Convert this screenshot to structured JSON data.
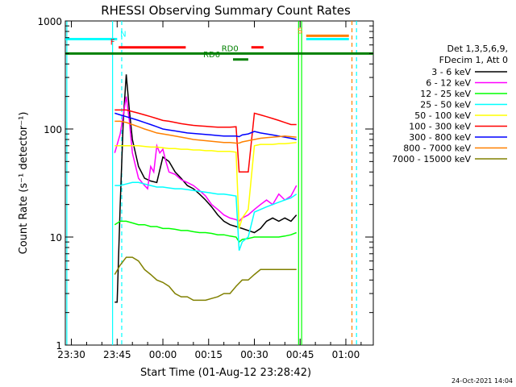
{
  "chart_data": {
    "type": "line",
    "title": "RHESSI Observing Summary Count Rates",
    "xlabel": "Start Time (01-Aug-12 23:28:42)",
    "ylabel": "Count Rate (s⁻¹ detector⁻¹)",
    "yscale": "log",
    "ylim": [
      1,
      1000
    ],
    "xlim_minutes_after_2330": [
      -2,
      99
    ],
    "grid": false,
    "legend_position": "right",
    "x_ticks": [
      {
        "label": "23:30",
        "t": 0
      },
      {
        "label": "23:45",
        "t": 15
      },
      {
        "label": "00:00",
        "t": 30
      },
      {
        "label": "00:15",
        "t": 45
      },
      {
        "label": "00:30",
        "t": 60
      },
      {
        "label": "00:45",
        "t": 75
      },
      {
        "label": "01:00",
        "t": 90
      }
    ],
    "y_ticks": [
      {
        "label": "1",
        "v": 1
      },
      {
        "label": "10",
        "v": 10
      },
      {
        "label": "100",
        "v": 100
      },
      {
        "label": "1000",
        "v": 1000
      }
    ],
    "legend_header": [
      "Det 1,3,5,6,9,",
      "FDecim 1, Att 0"
    ],
    "timestamp": "24-Oct-2021 14:04",
    "series": [
      {
        "name": "3 - 6 keV",
        "color": "#000000",
        "x": [
          14.2,
          15,
          16,
          17,
          18,
          19,
          20,
          22,
          24,
          26,
          28,
          30,
          32,
          34,
          36,
          38,
          40,
          42,
          44,
          46,
          48,
          50,
          52,
          54,
          56,
          58,
          60,
          62,
          64,
          66,
          68,
          70,
          72,
          73.8
        ],
        "y": [
          2.5,
          2.5,
          20,
          120,
          320,
          150,
          80,
          45,
          35,
          33,
          32,
          55,
          50,
          40,
          35,
          30,
          28,
          25,
          22,
          19,
          16,
          14,
          13,
          12.5,
          12,
          11.5,
          11,
          12,
          14,
          15,
          14,
          15,
          14,
          16
        ]
      },
      {
        "name": "6 - 12 keV",
        "color": "#ff00ff",
        "x": [
          14.2,
          16,
          18,
          19,
          20,
          22,
          24,
          25,
          26,
          27,
          28,
          29,
          30,
          31,
          32,
          34,
          36,
          38,
          40,
          42,
          44,
          46,
          48,
          50,
          52,
          54,
          55,
          56,
          58,
          60,
          62,
          64,
          66,
          68,
          70,
          72,
          73.8
        ],
        "y": [
          60,
          90,
          200,
          120,
          60,
          35,
          30,
          28,
          45,
          40,
          70,
          60,
          65,
          50,
          40,
          38,
          34,
          32,
          30,
          27,
          24,
          20,
          18,
          16,
          15,
          14.5,
          14,
          15,
          16,
          18,
          20,
          22,
          20,
          25,
          22,
          24,
          30
        ]
      },
      {
        "name": "12 - 25 keV",
        "color": "#00ff00",
        "x": [
          14.2,
          16,
          18,
          20,
          22,
          24,
          26,
          28,
          30,
          32,
          34,
          36,
          38,
          40,
          42,
          44,
          46,
          48,
          50,
          52,
          54,
          55,
          56,
          58,
          60,
          62,
          64,
          66,
          68,
          70,
          72,
          73.8
        ],
        "y": [
          13,
          14,
          14,
          13.5,
          13,
          13,
          12.5,
          12.5,
          12,
          12,
          11.8,
          11.5,
          11.5,
          11.2,
          11,
          11,
          10.8,
          10.5,
          10.5,
          10.2,
          10,
          9,
          9.5,
          9.7,
          10,
          10,
          10,
          10,
          10,
          10.2,
          10.5,
          11
        ]
      },
      {
        "name": "25 - 50 keV",
        "color": "#00ffff",
        "x": [
          14.2,
          16,
          18,
          20,
          22,
          24,
          26,
          28,
          30,
          32,
          34,
          36,
          38,
          40,
          42,
          44,
          46,
          48,
          50,
          52,
          54,
          55,
          56,
          58,
          60,
          62,
          64,
          66,
          68,
          70,
          72,
          73.8
        ],
        "y": [
          30,
          30,
          31,
          32,
          32,
          31,
          30,
          29,
          29,
          28.5,
          28,
          28,
          27.5,
          27,
          26.5,
          26,
          25.5,
          25,
          25,
          24.5,
          24,
          7.5,
          9,
          10,
          17,
          18,
          19,
          20,
          21,
          22,
          23,
          25
        ]
      },
      {
        "name": "50 - 100 keV",
        "color": "#ffff00",
        "x": [
          14.2,
          16,
          18,
          20,
          22,
          24,
          26,
          28,
          30,
          32,
          34,
          36,
          38,
          40,
          42,
          44,
          46,
          48,
          50,
          52,
          54,
          55,
          56,
          58,
          60,
          62,
          64,
          66,
          68,
          70,
          72,
          73.8
        ],
        "y": [
          70,
          70,
          70,
          70,
          70,
          69,
          68,
          68,
          67,
          66,
          66,
          65,
          65,
          64,
          64,
          63,
          63,
          62,
          62,
          62,
          61,
          12,
          15,
          18,
          70,
          72,
          72,
          72,
          73,
          73,
          74,
          75
        ]
      },
      {
        "name": "100 - 300 keV",
        "color": "#ff0000",
        "x": [
          14.2,
          16,
          18,
          20,
          22,
          24,
          26,
          28,
          30,
          32,
          34,
          36,
          38,
          40,
          42,
          44,
          46,
          48,
          50,
          52,
          54,
          55,
          56,
          58,
          60,
          62,
          64,
          66,
          68,
          70,
          72,
          73.8
        ],
        "y": [
          150,
          150,
          150,
          145,
          140,
          135,
          130,
          125,
          120,
          118,
          115,
          112,
          110,
          108,
          107,
          106,
          105,
          104,
          104,
          104,
          105,
          40,
          40,
          40,
          140,
          135,
          130,
          125,
          120,
          115,
          110,
          110
        ]
      },
      {
        "name": "300 - 800 keV",
        "color": "#0000ff",
        "x": [
          14.2,
          16,
          18,
          20,
          22,
          24,
          26,
          28,
          30,
          32,
          34,
          36,
          38,
          40,
          42,
          44,
          46,
          48,
          50,
          52,
          54,
          55,
          56,
          58,
          60,
          62,
          64,
          66,
          68,
          70,
          72,
          73.8
        ],
        "y": [
          140,
          135,
          130,
          125,
          120,
          115,
          110,
          105,
          100,
          98,
          96,
          94,
          92,
          91,
          90,
          89,
          88,
          87,
          86,
          86,
          86,
          85,
          88,
          90,
          95,
          92,
          90,
          88,
          86,
          84,
          82,
          80
        ]
      },
      {
        "name": "800 - 7000 keV",
        "color": "#ff8000",
        "x": [
          14.2,
          16,
          18,
          20,
          22,
          24,
          26,
          28,
          30,
          32,
          34,
          36,
          38,
          40,
          42,
          44,
          46,
          48,
          50,
          52,
          54,
          55,
          56,
          58,
          60,
          62,
          64,
          66,
          68,
          70,
          72,
          73.8
        ],
        "y": [
          118,
          118,
          115,
          110,
          105,
          100,
          96,
          92,
          90,
          88,
          86,
          84,
          82,
          80,
          79,
          78,
          77,
          76,
          75,
          75,
          74,
          74,
          76,
          78,
          80,
          82,
          83,
          84,
          85,
          86,
          85,
          84
        ]
      },
      {
        "name": "7000 - 15000 keV",
        "color": "#808000",
        "x": [
          14.2,
          16,
          18,
          20,
          22,
          24,
          26,
          28,
          30,
          32,
          34,
          36,
          38,
          40,
          42,
          44,
          46,
          48,
          50,
          52,
          54,
          56,
          58,
          60,
          62,
          64,
          66,
          68,
          70,
          72,
          73.8
        ],
        "y": [
          4.5,
          5.5,
          6.5,
          6.5,
          6,
          5,
          4.5,
          4,
          3.8,
          3.5,
          3,
          2.8,
          2.8,
          2.6,
          2.6,
          2.6,
          2.7,
          2.8,
          3,
          3,
          3.5,
          4,
          4,
          4.5,
          5,
          5,
          5,
          5,
          5,
          5,
          5
        ]
      }
    ],
    "flags": [
      {
        "name": "N",
        "color": "#00ffff",
        "y": 680,
        "segments": [
          [
            -2,
            15
          ]
        ],
        "label": "N",
        "label_at": 17
      },
      {
        "name": "S",
        "color": "#ff8000",
        "y": 730,
        "segments": [
          [
            77,
            91
          ]
        ],
        "label": "S",
        "label_at": 75
      },
      {
        "name": "S2",
        "color": "#00ffff",
        "y": 680,
        "segments": [
          [
            77,
            91
          ]
        ]
      },
      {
        "name": "F",
        "color": "#ff0000",
        "y": 570,
        "segments": [
          [
            15.5,
            37.5
          ],
          [
            59,
            63
          ]
        ],
        "label": "F",
        "label_at": 13.5
      },
      {
        "name": "RD0",
        "color": "#008000",
        "y": 500,
        "segments": [
          [
            -2,
            99
          ]
        ],
        "label": "RD0",
        "label_at": 52
      },
      {
        "name": "RD6",
        "color": "#008000",
        "y": 440,
        "segments": [
          [
            53,
            58
          ]
        ],
        "label": "RD6",
        "label_at": 46
      }
    ],
    "vertical_lines": [
      {
        "t": -1.5,
        "color": "#00ffff",
        "style": "solid"
      },
      {
        "t": 13.5,
        "color": "#00ffff",
        "style": "solid"
      },
      {
        "t": 16.5,
        "color": "#00ffff",
        "style": "dashed"
      },
      {
        "t": 74.5,
        "color": "#00ff00",
        "style": "solid"
      },
      {
        "t": 75.5,
        "color": "#00ff00",
        "style": "solid"
      },
      {
        "t": 92,
        "color": "#ff8000",
        "style": "dashed"
      },
      {
        "t": 93.5,
        "color": "#00ffff",
        "style": "dashed"
      }
    ]
  }
}
